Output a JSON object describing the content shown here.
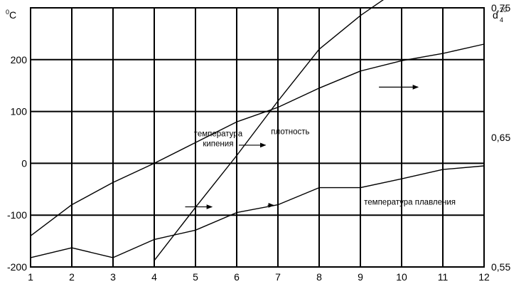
{
  "chart_data": {
    "type": "line",
    "x": [
      1,
      2,
      3,
      4,
      5,
      6,
      7,
      8,
      9,
      10,
      11,
      12
    ],
    "x_ticks": [
      "1",
      "2",
      "3",
      "4",
      "5",
      "6",
      "7",
      "8",
      "9",
      "10",
      "11",
      "12"
    ],
    "xlim": [
      1,
      12
    ],
    "y_left": {
      "unit_sup": "0",
      "unit": "C",
      "ticks": [
        "200",
        "100",
        "0",
        "-100",
        "-200"
      ],
      "tick_values": [
        200,
        100,
        0,
        -100,
        -200
      ],
      "ylim": [
        -200,
        300
      ]
    },
    "y_right": {
      "unit": "d",
      "unit_sup": "20",
      "unit_sub": "4",
      "ticks": [
        "0,75",
        "0,65",
        "0,55"
      ],
      "tick_values": [
        0.75,
        0.65,
        0.55
      ],
      "ylim": [
        0.55,
        0.75
      ]
    },
    "grid": true,
    "series": [
      {
        "name": "температура кипения",
        "axis": "left",
        "x": [
          1,
          2,
          3,
          4,
          5,
          6,
          7,
          8,
          9,
          10,
          11,
          12
        ],
        "values": [
          -140,
          -80,
          -37,
          0,
          40,
          80,
          108,
          145,
          178,
          198,
          212,
          230
        ]
      },
      {
        "name": "плотность",
        "axis": "right",
        "x": [
          4,
          5,
          6,
          7,
          8,
          9,
          10,
          11,
          12
        ],
        "values": [
          0.555,
          0.596,
          0.636,
          0.678,
          0.718,
          0.744,
          0.766,
          0.787,
          0.803
        ]
      },
      {
        "name": "температура плавления",
        "axis": "left",
        "x": [
          1,
          2,
          3,
          4,
          5,
          6,
          7,
          8,
          9,
          10,
          11,
          12
        ],
        "values": [
          -182,
          -163,
          -182,
          -147,
          -129,
          -95,
          -80,
          -47,
          -47,
          -30,
          -12,
          -5
        ]
      }
    ],
    "annotations": [
      {
        "lines": [
          "температура",
          "кипения"
        ],
        "at": [
          5.55,
          52
        ]
      },
      {
        "lines": [
          "плотность"
        ],
        "at": [
          7.3,
          56
        ]
      },
      {
        "lines": [
          "температура плавления"
        ],
        "at": [
          10.2,
          -80
        ]
      }
    ],
    "arrows": [
      {
        "from": [
          9.45,
          147
        ],
        "to": [
          10.4,
          147
        ]
      },
      {
        "from": [
          6.05,
          35
        ],
        "to": [
          6.7,
          35
        ]
      },
      {
        "from": [
          4.75,
          -84
        ],
        "to": [
          5.4,
          -84
        ]
      },
      {
        "from": [
          6.75,
          -81
        ],
        "to": [
          6.9,
          -81
        ]
      }
    ]
  }
}
